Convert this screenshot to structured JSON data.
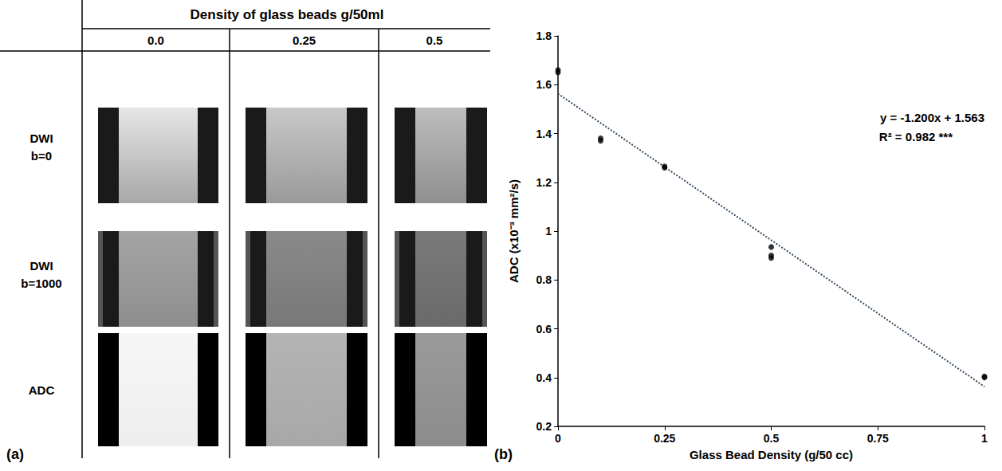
{
  "panel_letters": [
    "(a)",
    "(b)"
  ],
  "panel_a": {
    "header": "Density of glass beads g/50ml",
    "columns": [
      "0.0",
      "0.25",
      "0.5"
    ],
    "rows": [
      [
        "DWI",
        "b=0"
      ],
      [
        "DWI",
        "b=1000"
      ],
      [
        "ADC"
      ]
    ]
  },
  "chart_data": {
    "type": "scatter",
    "x": [
      0,
      0,
      0.1,
      0.1,
      0.25,
      0.25,
      0.5,
      0.5,
      0.5,
      1,
      1
    ],
    "values": [
      1.66,
      1.65,
      1.38,
      1.37,
      1.265,
      1.26,
      0.935,
      0.9,
      0.89,
      0.405,
      0.4
    ],
    "color": "#000000",
    "marker": "circle",
    "x_label": "Glass Bead Density (g/50 cc)",
    "y_label": "ADC (x10⁻³ mm²/s)",
    "xlim": [
      0,
      1
    ],
    "xticks": [
      0,
      0.25,
      0.5,
      0.75,
      1
    ],
    "ylim": [
      0.2,
      1.8
    ],
    "yticks": [
      0.2,
      0.4,
      0.6,
      0.8,
      1,
      1.2,
      1.4,
      1.6,
      1.8
    ],
    "grid": false,
    "trendline": {
      "slope": -1.2,
      "intercept": 1.563,
      "color": "#34495e",
      "line_style": "dotted",
      "equation_label": "y = -1.200x + 1.563",
      "r_squared_label": "R² = 0.982 ***"
    }
  }
}
